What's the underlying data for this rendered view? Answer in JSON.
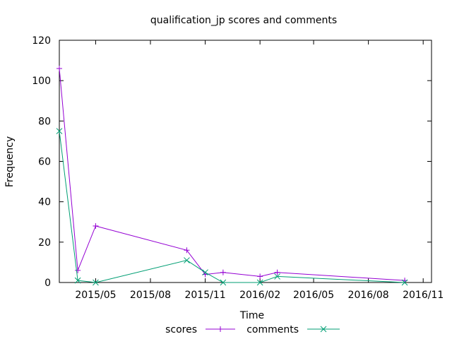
{
  "chart_data": {
    "type": "line",
    "title": "qualification_jp scores and comments",
    "xlabel": "Time",
    "ylabel": "Frequency",
    "ylim": [
      0,
      120
    ],
    "xlim": [
      "2015-03-01",
      "2016-11-15"
    ],
    "yticks": [
      0,
      20,
      40,
      60,
      80,
      100,
      120
    ],
    "xticks": [
      {
        "date": "2015-05-01",
        "label": "2015/05"
      },
      {
        "date": "2015-08-01",
        "label": "2015/08"
      },
      {
        "date": "2015-11-01",
        "label": "2015/11"
      },
      {
        "date": "2016-02-01",
        "label": "2016/02"
      },
      {
        "date": "2016-05-01",
        "label": "2016/05"
      },
      {
        "date": "2016-08-01",
        "label": "2016/08"
      },
      {
        "date": "2016-11-01",
        "label": "2016/11"
      }
    ],
    "legend": "bottom-center",
    "grid": false,
    "series": [
      {
        "name": "scores",
        "color": "#9400d3",
        "marker": "plus",
        "points": [
          {
            "x": "2015-03-01",
            "y": 106
          },
          {
            "x": "2015-04-01",
            "y": 6
          },
          {
            "x": "2015-05-01",
            "y": 28
          },
          {
            "x": "2015-10-01",
            "y": 16
          },
          {
            "x": "2015-11-01",
            "y": 4
          },
          {
            "x": "2015-12-01",
            "y": 5
          },
          {
            "x": "2016-02-01",
            "y": 3
          },
          {
            "x": "2016-03-01",
            "y": 5
          },
          {
            "x": "2016-10-01",
            "y": 1
          }
        ]
      },
      {
        "name": "comments",
        "color": "#009e73",
        "marker": "x",
        "points": [
          {
            "x": "2015-03-01",
            "y": 75
          },
          {
            "x": "2015-04-01",
            "y": 1
          },
          {
            "x": "2015-05-01",
            "y": 0
          },
          {
            "x": "2015-10-01",
            "y": 11
          },
          {
            "x": "2015-11-01",
            "y": 5
          },
          {
            "x": "2015-12-01",
            "y": 0
          },
          {
            "x": "2016-02-01",
            "y": 0
          },
          {
            "x": "2016-03-01",
            "y": 3
          },
          {
            "x": "2016-10-01",
            "y": 0
          }
        ]
      }
    ]
  }
}
